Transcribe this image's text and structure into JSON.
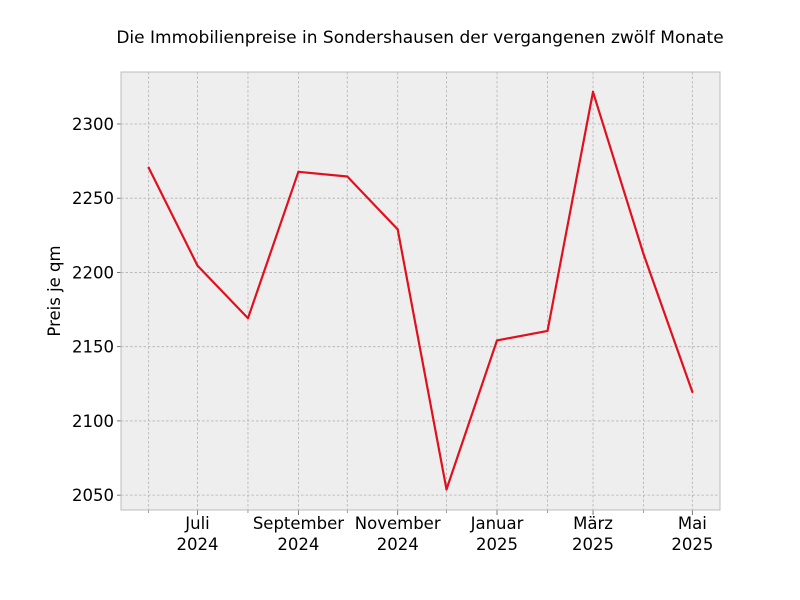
{
  "chart_data": {
    "type": "line",
    "title": "Die Immobilienpreise in Sondershausen der vergangenen zwölf Monate",
    "xlabel": "",
    "ylabel": "Preis je qm",
    "x": [
      "2024-06",
      "2024-07",
      "2024-08",
      "2024-09",
      "2024-10",
      "2024-11",
      "2024-12",
      "2025-01",
      "2025-02",
      "2025-03",
      "2025-04",
      "2025-05"
    ],
    "series": [
      {
        "values": [
          2270.5,
          2204.6,
          2169.2,
          2267.8,
          2264.6,
          2229.0,
          2053.9,
          2154.2,
          2160.6,
          2321.6,
          2212.4,
          2119.6
        ]
      }
    ],
    "ylim": [
      2040,
      2335
    ],
    "xlim": [
      "2024-05-15",
      "2025-05-18"
    ],
    "yticks": [
      2050,
      2100,
      2150,
      2200,
      2250,
      2300
    ],
    "x_major_ticks": [
      {
        "date": "2024-07",
        "line1": "Juli",
        "line2": "2024"
      },
      {
        "date": "2024-09",
        "line1": "September",
        "line2": "2024"
      },
      {
        "date": "2024-11",
        "line1": "November",
        "line2": "2024"
      },
      {
        "date": "2025-01",
        "line1": "Januar",
        "line2": "2025"
      },
      {
        "date": "2025-03",
        "line1": "März",
        "line2": "2025"
      },
      {
        "date": "2025-05",
        "line1": "Mai",
        "line2": "2025"
      }
    ],
    "x_minor_ticks": [
      "2024-06",
      "2024-08",
      "2024-10",
      "2024-12",
      "2025-02",
      "2025-04"
    ],
    "grid": true,
    "colors": {
      "line": "#e0101e",
      "plot_background": "#eeeeee",
      "grid": "#b2b2b2",
      "frame": "#bcbcbc"
    }
  }
}
